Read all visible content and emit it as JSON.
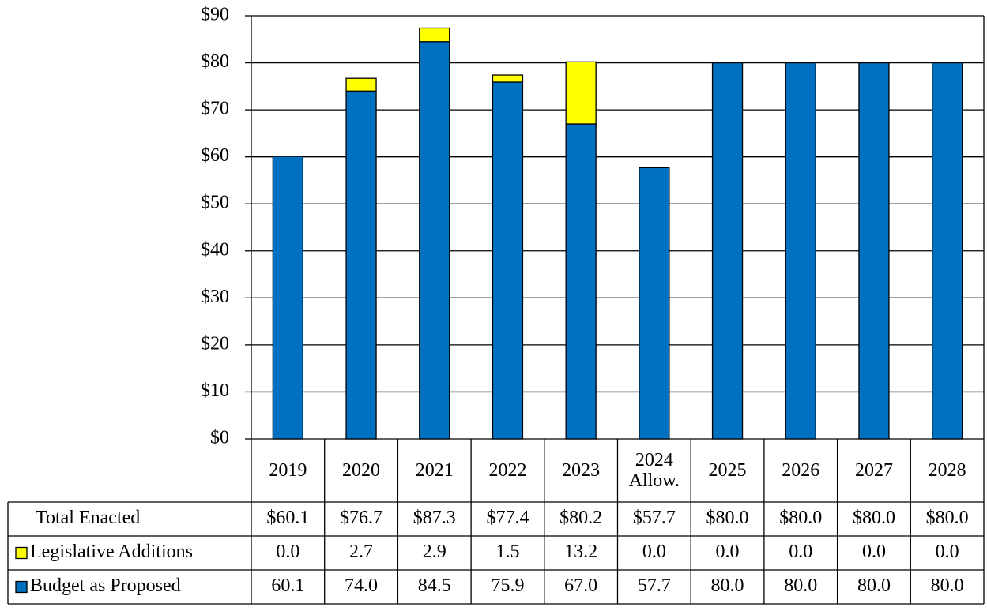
{
  "chart_data": {
    "type": "bar",
    "stacked": true,
    "categories": [
      "2019",
      "2020",
      "2021",
      "2022",
      "2023",
      "2024 Allow.",
      "2025",
      "2026",
      "2027",
      "2028"
    ],
    "series": [
      {
        "name": "Budget as Proposed",
        "color": "#0070c0",
        "values": [
          60.1,
          74.0,
          84.5,
          75.9,
          67.0,
          57.7,
          80.0,
          80.0,
          80.0,
          80.0
        ],
        "value_labels": [
          "60.1",
          "74.0",
          "84.5",
          "75.9",
          "67.0",
          "57.7",
          "80.0",
          "80.0",
          "80.0",
          "80.0"
        ]
      },
      {
        "name": "Legislative Additions",
        "color": "#ffff00",
        "values": [
          0.0,
          2.7,
          2.9,
          1.5,
          13.2,
          0.0,
          0.0,
          0.0,
          0.0,
          0.0
        ],
        "value_labels": [
          "0.0",
          "2.7",
          "2.9",
          "1.5",
          "13.2",
          "0.0",
          "0.0",
          "0.0",
          "0.0",
          "0.0"
        ]
      }
    ],
    "totals": {
      "name": "Total Enacted",
      "values": [
        60.1,
        76.7,
        87.3,
        77.4,
        80.2,
        57.7,
        80.0,
        80.0,
        80.0,
        80.0
      ],
      "value_labels": [
        "$60.1",
        "$76.7",
        "$87.3",
        "$77.4",
        "$80.2",
        "$57.7",
        "$80.0",
        "$80.0",
        "$80.0",
        "$80.0"
      ]
    },
    "ylim": [
      0,
      90
    ],
    "yticks": [
      {
        "value": 0,
        "label": "$0"
      },
      {
        "value": 10,
        "label": "$10"
      },
      {
        "value": 20,
        "label": "$20"
      },
      {
        "value": 30,
        "label": "$30"
      },
      {
        "value": 40,
        "label": "$40"
      },
      {
        "value": 50,
        "label": "$50"
      },
      {
        "value": 60,
        "label": "$60"
      },
      {
        "value": 70,
        "label": "$70"
      },
      {
        "value": 80,
        "label": "$80"
      },
      {
        "value": 90,
        "label": "$90"
      }
    ],
    "grid": true
  }
}
